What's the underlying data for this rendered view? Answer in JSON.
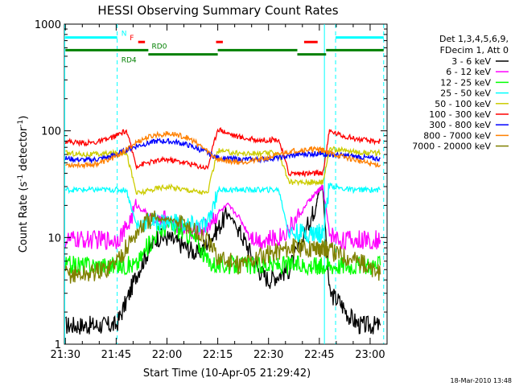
{
  "chart_data": {
    "type": "line",
    "title": "HESSI Observing Summary Count Rates",
    "xlabel": "Start Time (10-Apr-05 21:29:42)",
    "ylabel_main": "Count Rate (s",
    "ylabel_sup1": "-1",
    "ylabel_mid": " detector",
    "ylabel_sup2": "-1",
    "ylabel_end": ")",
    "yscale": "log",
    "ylim": [
      1,
      1000
    ],
    "xlim_minutes": [
      -0.3,
      95.0
    ],
    "x_ticks": [
      {
        "m": 0,
        "label": "21:30"
      },
      {
        "m": 15,
        "label": "21:45"
      },
      {
        "m": 30,
        "label": "22:00"
      },
      {
        "m": 45,
        "label": "22:15"
      },
      {
        "m": 60,
        "label": "22:30"
      },
      {
        "m": 75,
        "label": "22:45"
      },
      {
        "m": 90,
        "label": "23:00"
      }
    ],
    "y_ticks": [
      {
        "v": 1,
        "label": "1"
      },
      {
        "v": 10,
        "label": "10"
      },
      {
        "v": 100,
        "label": "100"
      },
      {
        "v": 1000,
        "label": "1000"
      }
    ],
    "grid": false,
    "legend_position": "right",
    "legend_header": [
      "Det 1,3,4,5,6,9,",
      "FDecim 1, Att 0"
    ],
    "series": [
      {
        "name": "3 - 6 keV",
        "color": "#000000",
        "x": [
          0,
          3,
          6,
          9,
          12,
          15,
          18,
          21,
          24,
          27,
          30,
          33,
          36,
          39,
          42,
          45,
          48,
          51,
          54,
          57,
          60,
          63,
          66,
          69,
          72,
          74,
          75,
          76,
          78,
          81,
          84,
          87,
          90,
          93
        ],
        "y": [
          1.5,
          1.5,
          1.5,
          1.5,
          1.5,
          1.5,
          2.5,
          4.5,
          7,
          10,
          10,
          9,
          8,
          7,
          9,
          12,
          17,
          12,
          8,
          5,
          4,
          4.5,
          5,
          8,
          14,
          20,
          28,
          30,
          3,
          2.5,
          1.8,
          1.5,
          1.5,
          1.5
        ]
      },
      {
        "name": "6 - 12 keV",
        "color": "#ff00ff",
        "x": [
          0,
          3,
          6,
          9,
          12,
          15,
          18,
          21,
          24,
          27,
          30,
          33,
          36,
          39,
          42,
          45,
          48,
          51,
          54,
          57,
          60,
          63,
          66,
          69,
          72,
          74,
          75,
          76,
          78,
          81,
          84,
          87,
          90,
          93
        ],
        "y": [
          9.5,
          9.5,
          9.5,
          9.5,
          9.5,
          9.5,
          12,
          20,
          17,
          14,
          15,
          13,
          12,
          11,
          13,
          17,
          20,
          16,
          11,
          9.5,
          9.5,
          10,
          12,
          16,
          22,
          26,
          28,
          30,
          11,
          9.5,
          9.5,
          9.5,
          9.5,
          9.5
        ]
      },
      {
        "name": "12 - 25 keV",
        "color": "#00ff00",
        "x": [
          0,
          3,
          6,
          9,
          12,
          15,
          18,
          21,
          24,
          27,
          30,
          33,
          36,
          39,
          42,
          45,
          48,
          51,
          54,
          57,
          60,
          63,
          66,
          69,
          72,
          74,
          75,
          76,
          78,
          81,
          84,
          87,
          90,
          93
        ],
        "y": [
          5.5,
          5.5,
          5.5,
          5.5,
          5.5,
          5.5,
          5.5,
          5.5,
          8,
          11,
          13,
          12,
          11,
          9,
          6,
          5.5,
          5.5,
          5.5,
          5.5,
          5.5,
          5.5,
          5.5,
          5.5,
          5.5,
          5.5,
          5.5,
          5.5,
          5.5,
          5.5,
          5.5,
          5.5,
          5.5,
          5.5,
          5.5
        ]
      },
      {
        "name": "25 - 50 keV",
        "color": "#00ffff",
        "x": [
          0,
          3,
          6,
          9,
          12,
          15,
          18,
          21,
          24,
          27,
          30,
          33,
          36,
          39,
          42,
          45,
          48,
          51,
          54,
          57,
          60,
          63,
          66,
          69,
          72,
          74,
          75,
          76,
          78,
          81,
          84,
          87,
          90,
          93
        ],
        "y": [
          28,
          28,
          28,
          28,
          28,
          28,
          28,
          13,
          14,
          14,
          14,
          14,
          13,
          13,
          13,
          28,
          28,
          28,
          28,
          28,
          28,
          28,
          11,
          11,
          11,
          11,
          11,
          11,
          31,
          29,
          28,
          28,
          28,
          28
        ]
      },
      {
        "name": "50 - 100 keV",
        "color": "#cccc00",
        "x": [
          0,
          3,
          6,
          9,
          12,
          15,
          18,
          21,
          24,
          27,
          30,
          33,
          36,
          39,
          42,
          45,
          48,
          51,
          54,
          57,
          60,
          63,
          66,
          69,
          72,
          74,
          75,
          76,
          78,
          81,
          84,
          87,
          90,
          93
        ],
        "y": [
          62,
          61,
          60,
          60,
          61,
          62,
          63,
          26,
          27,
          29,
          30,
          29,
          28,
          27,
          26,
          65,
          63,
          62,
          61,
          61,
          62,
          62,
          33,
          33,
          33,
          33,
          33,
          33,
          68,
          66,
          64,
          63,
          62,
          62
        ]
      },
      {
        "name": "100 - 300 keV",
        "color": "#ff0000",
        "x": [
          0,
          3,
          6,
          9,
          12,
          15,
          18,
          21,
          24,
          27,
          30,
          33,
          36,
          39,
          42,
          45,
          48,
          51,
          54,
          57,
          60,
          63,
          66,
          69,
          72,
          74,
          75,
          76,
          78,
          81,
          84,
          87,
          90,
          93
        ],
        "y": [
          80,
          78,
          77,
          78,
          82,
          90,
          100,
          47,
          50,
          52,
          54,
          52,
          50,
          47,
          45,
          105,
          95,
          88,
          84,
          82,
          82,
          83,
          40,
          40,
          40,
          40,
          40,
          40,
          100,
          92,
          87,
          83,
          80,
          80
        ]
      },
      {
        "name": "300 - 800 keV",
        "color": "#0000ff",
        "x": [
          0,
          3,
          6,
          9,
          12,
          15,
          18,
          21,
          24,
          27,
          30,
          33,
          36,
          39,
          42,
          45,
          48,
          51,
          54,
          57,
          60,
          63,
          66,
          69,
          72,
          74,
          75,
          76,
          78,
          81,
          84,
          87,
          90,
          93
        ],
        "y": [
          55,
          54,
          53,
          54,
          56,
          60,
          66,
          72,
          76,
          80,
          80,
          78,
          74,
          68,
          62,
          56,
          55,
          54,
          54,
          54,
          55,
          56,
          58,
          60,
          61,
          61,
          61,
          61,
          60,
          59,
          58,
          57,
          55,
          55
        ]
      },
      {
        "name": "800 - 7000 keV",
        "color": "#ff8000",
        "x": [
          0,
          3,
          6,
          9,
          12,
          15,
          18,
          21,
          24,
          27,
          30,
          33,
          36,
          39,
          42,
          45,
          48,
          51,
          54,
          57,
          60,
          63,
          66,
          69,
          72,
          74,
          75,
          76,
          78,
          81,
          84,
          87,
          90,
          93
        ],
        "y": [
          48,
          48,
          48,
          49,
          52,
          58,
          66,
          78,
          86,
          92,
          94,
          92,
          86,
          76,
          64,
          54,
          52,
          51,
          52,
          53,
          56,
          60,
          64,
          66,
          67,
          67,
          67,
          66,
          62,
          58,
          55,
          52,
          49,
          48
        ]
      },
      {
        "name": "7000 - 20000 keV",
        "color": "#808000",
        "x": [
          0,
          3,
          6,
          9,
          12,
          15,
          18,
          21,
          24,
          27,
          30,
          33,
          36,
          39,
          42,
          45,
          48,
          51,
          54,
          57,
          60,
          63,
          66,
          69,
          72,
          74,
          75,
          76,
          78,
          81,
          84,
          87,
          90,
          93
        ],
        "y": [
          4.5,
          4.5,
          4.5,
          4.8,
          5,
          6,
          8,
          11,
          14,
          15,
          15,
          14,
          13,
          11,
          9,
          6.5,
          6,
          5.5,
          6,
          6.5,
          7,
          7.5,
          8,
          8,
          8,
          8,
          8,
          8,
          7.5,
          7,
          6.5,
          6,
          5,
          4.5
        ]
      }
    ],
    "vlines_minutes": [
      {
        "m": -0.2,
        "style": "solid",
        "color": "#00ffff"
      },
      {
        "m": 15.3,
        "style": "dashed",
        "color": "#00ffff"
      },
      {
        "m": 76.5,
        "style": "solid",
        "color": "#00ffff"
      },
      {
        "m": 79.8,
        "style": "dashed",
        "color": "#00ffff"
      },
      {
        "m": 94.0,
        "style": "dashed",
        "color": "#00ffff"
      }
    ],
    "flag_bars": [
      {
        "label": "N",
        "color": "#00ffff",
        "y": 750,
        "segments": [
          [
            0,
            15.3
          ],
          [
            79.8,
            94
          ]
        ],
        "label_at": 16.5
      },
      {
        "label": "F",
        "color": "#ff0000",
        "y": 680,
        "segments": [
          [
            21.5,
            23.5
          ],
          [
            44.5,
            46.5
          ],
          [
            70.5,
            74.5
          ]
        ],
        "label_at": 19.0
      },
      {
        "label": "RD0",
        "color": "#008000",
        "y": 570,
        "segments": [
          [
            0,
            24.5
          ],
          [
            45,
            68.5
          ],
          [
            77,
            94
          ]
        ],
        "label_at": 25.5
      },
      {
        "label": "RD4",
        "color": "#008000",
        "y": 520,
        "segments": [
          [
            24.5,
            45
          ],
          [
            68.5,
            77
          ]
        ],
        "label_at": 16.5
      }
    ]
  },
  "footer_timestamp": "18-Mar-2010 13:48"
}
